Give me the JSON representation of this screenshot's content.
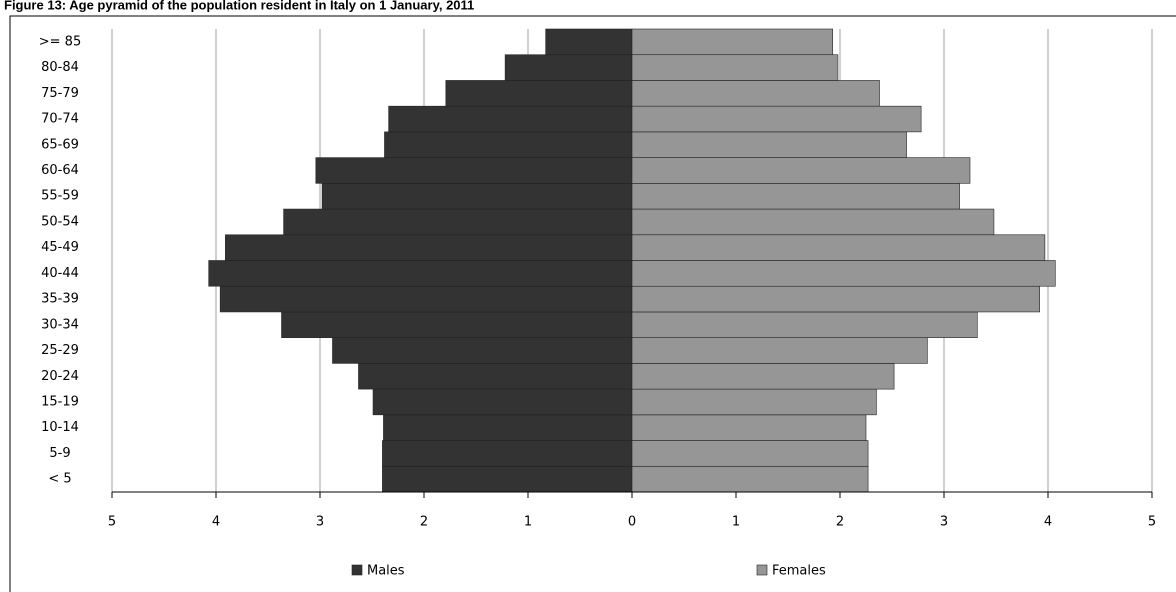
{
  "chart_data": {
    "type": "pyramid",
    "title": "Figure 13: Age pyramid of the population resident in Italy on 1 January, 2011",
    "categories": [
      "< 5",
      "5-9",
      "10-14",
      "15-19",
      "20-24",
      "25-29",
      "30-34",
      "35-39",
      "40-44",
      "45-49",
      "50-54",
      "55-59",
      "60-64",
      "65-69",
      "70-74",
      "75-79",
      "80-84",
      ">= 85"
    ],
    "series": [
      {
        "name": "Males",
        "color": "#333333",
        "values": [
          -2.4,
          -2.4,
          -2.39,
          -2.49,
          -2.63,
          -2.88,
          -3.37,
          -3.96,
          -4.07,
          -3.91,
          -3.35,
          -2.98,
          -3.04,
          -2.38,
          -2.34,
          -1.79,
          -1.22,
          -0.83
        ]
      },
      {
        "name": "Females",
        "color": "#969696",
        "values": [
          2.27,
          2.27,
          2.25,
          2.35,
          2.52,
          2.84,
          3.32,
          3.92,
          4.07,
          3.97,
          3.48,
          3.15,
          3.25,
          2.64,
          2.78,
          2.38,
          1.98,
          1.93
        ]
      }
    ],
    "xlim": [
      -5,
      5
    ],
    "xticks": [
      {
        "value": -5,
        "label": "5"
      },
      {
        "value": -4,
        "label": "4"
      },
      {
        "value": -3,
        "label": "3"
      },
      {
        "value": -2,
        "label": "2"
      },
      {
        "value": -1,
        "label": "1"
      },
      0,
      1,
      2,
      3,
      4,
      5
    ],
    "grid": true,
    "legend": "bottom"
  }
}
